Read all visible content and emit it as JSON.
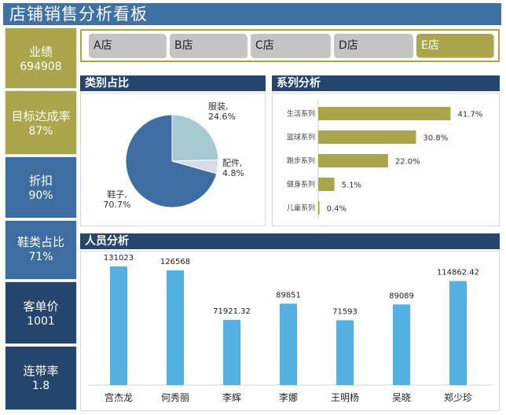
{
  "title": "店铺销售分析看板",
  "kpis": [
    {
      "label": "业绩",
      "value": "694908",
      "color": "#aaa64c"
    },
    {
      "label": "目标达成率",
      "value": "87%",
      "color": "#aaa64c"
    },
    {
      "label": "折扣",
      "value": "90%",
      "color": "#3e6ea0"
    },
    {
      "label": "鞋类占比",
      "value": "71%",
      "color": "#3e6ea0"
    },
    {
      "label": "客单价",
      "value": "1001",
      "color": "#26466d"
    },
    {
      "label": "连带率",
      "value": "1.8",
      "color": "#26466d"
    }
  ],
  "stores": {
    "items": [
      "A店",
      "B店",
      "C店",
      "D店",
      "E店"
    ],
    "selected": "E店"
  },
  "category_section": {
    "title": "类别占比"
  },
  "series_section": {
    "title": "系列分析"
  },
  "staff_section": {
    "title": "人员分析"
  },
  "chart_data": [
    {
      "type": "pie",
      "title": "类别占比",
      "categories": [
        "服装",
        "配件",
        "鞋子"
      ],
      "values": [
        24.6,
        4.8,
        70.7
      ],
      "data_labels": [
        "服装,\n24.6%",
        "配件,\n4.8%",
        "鞋子,\n70.7%"
      ],
      "colors": [
        "#a9c9d2",
        "#d5dce8",
        "#3e6ea0"
      ]
    },
    {
      "type": "bar",
      "orientation": "horizontal",
      "title": "系列分析",
      "categories": [
        "生活系列",
        "篮球系列",
        "跑步系列",
        "健身系列",
        "儿童系列"
      ],
      "values": [
        41.7,
        30.8,
        22.0,
        5.1,
        0.4
      ],
      "data_labels": [
        "41.7%",
        "30.8%",
        "22.0%",
        "5.1%",
        "0.4%"
      ],
      "color": "#aaa64c",
      "xlim": [
        0,
        50
      ]
    },
    {
      "type": "bar",
      "title": "人员分析",
      "categories": [
        "宫杰龙",
        "何秀丽",
        "李辉",
        "李娜",
        "王明杨",
        "吴晓",
        "郑少珍"
      ],
      "values": [
        131023,
        126568,
        71921.32,
        89851,
        71593,
        89089,
        114862.42
      ],
      "data_labels": [
        "131023",
        "126568",
        "71921.32",
        "89851",
        "71593",
        "89089",
        "114862.42"
      ],
      "color": "#55b1df",
      "ylim": [
        0,
        150000
      ]
    }
  ]
}
